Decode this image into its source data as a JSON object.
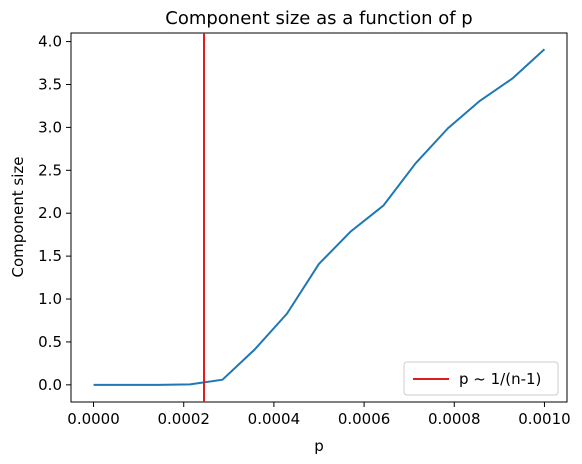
{
  "chart_data": {
    "type": "line",
    "title": "Component size as a function of p",
    "xlabel": "p",
    "ylabel": "Component size",
    "xlim": [
      -5e-05,
      0.00105
    ],
    "ylim": [
      -0.2,
      4.1
    ],
    "xticks": [
      0.0,
      0.0002,
      0.0004,
      0.0006,
      0.0008,
      0.001
    ],
    "xtick_labels": [
      "0.0000",
      "0.0002",
      "0.0004",
      "0.0006",
      "0.0008",
      "0.0010"
    ],
    "yticks": [
      0.0,
      0.5,
      1.0,
      1.5,
      2.0,
      2.5,
      3.0,
      3.5,
      4.0
    ],
    "ytick_labels": [
      "0.0",
      "0.5",
      "1.0",
      "1.5",
      "2.0",
      "2.5",
      "3.0",
      "3.5",
      "4.0"
    ],
    "grid": false,
    "series": [
      {
        "color": "#1f77b4",
        "x": [
          0.0,
          7.14e-05,
          0.000143,
          0.000214,
          0.000286,
          0.000357,
          0.000429,
          0.0005,
          0.000571,
          0.000643,
          0.000714,
          0.000786,
          0.000857,
          0.000929,
          0.001
        ],
        "y": [
          0.0,
          0.0,
          0.0,
          0.005,
          0.06,
          0.41,
          0.83,
          1.41,
          1.79,
          2.09,
          2.58,
          2.99,
          3.31,
          3.57,
          3.91
        ]
      }
    ],
    "vlines": [
      {
        "name": "p ~ 1/(n-1)",
        "x": 0.000245,
        "color": "#e31a1c"
      }
    ],
    "legend": {
      "position": "bottom-right",
      "entries": [
        "p ~ 1/(n-1)"
      ]
    }
  }
}
